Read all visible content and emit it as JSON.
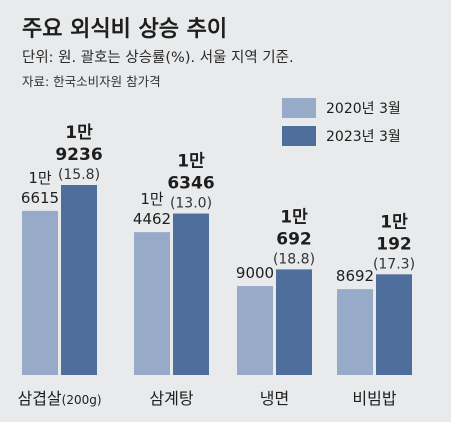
{
  "title": "주요 외식비 상승 추이",
  "subtitle": "단위: 원. 괄호는 상승률(%). 서울 지역 기준.",
  "source": "자료: 한국소비자원 참가격",
  "colors": {
    "background": "#e8eaec",
    "series_2020": "#97aac8",
    "series_2023": "#4e6e9c"
  },
  "chart_data": {
    "type": "bar",
    "title": "주요 외식비 상승 추이",
    "subtitle": "단위: 원. 괄호는 상승률(%). 서울 지역 기준.",
    "source": "자료: 한국소비자원 참가격",
    "categories": [
      {
        "name": "삼겹살",
        "suffix": "(200g)"
      },
      {
        "name": "삼계탕",
        "suffix": ""
      },
      {
        "name": "냉면",
        "suffix": ""
      },
      {
        "name": "비빔밥",
        "suffix": ""
      }
    ],
    "series": [
      {
        "name": "2020년 3월",
        "values": [
          16615,
          14462,
          9000,
          8692
        ],
        "labels": [
          [
            "1만",
            "6615"
          ],
          [
            "1만",
            "4462"
          ],
          [
            "9000"
          ],
          [
            "8692"
          ]
        ]
      },
      {
        "name": "2023년 3월",
        "values": [
          19236,
          16346,
          10692,
          10192
        ],
        "labels": [
          [
            "1만",
            "9236"
          ],
          [
            "1만",
            "6346"
          ],
          [
            "1만",
            "692"
          ],
          [
            "1만",
            "192"
          ]
        ],
        "changes": [
          "(15.8)",
          "(13.0)",
          "(18.8)",
          "(17.3)"
        ]
      }
    ],
    "legend_position": "top-right",
    "grid": false
  }
}
